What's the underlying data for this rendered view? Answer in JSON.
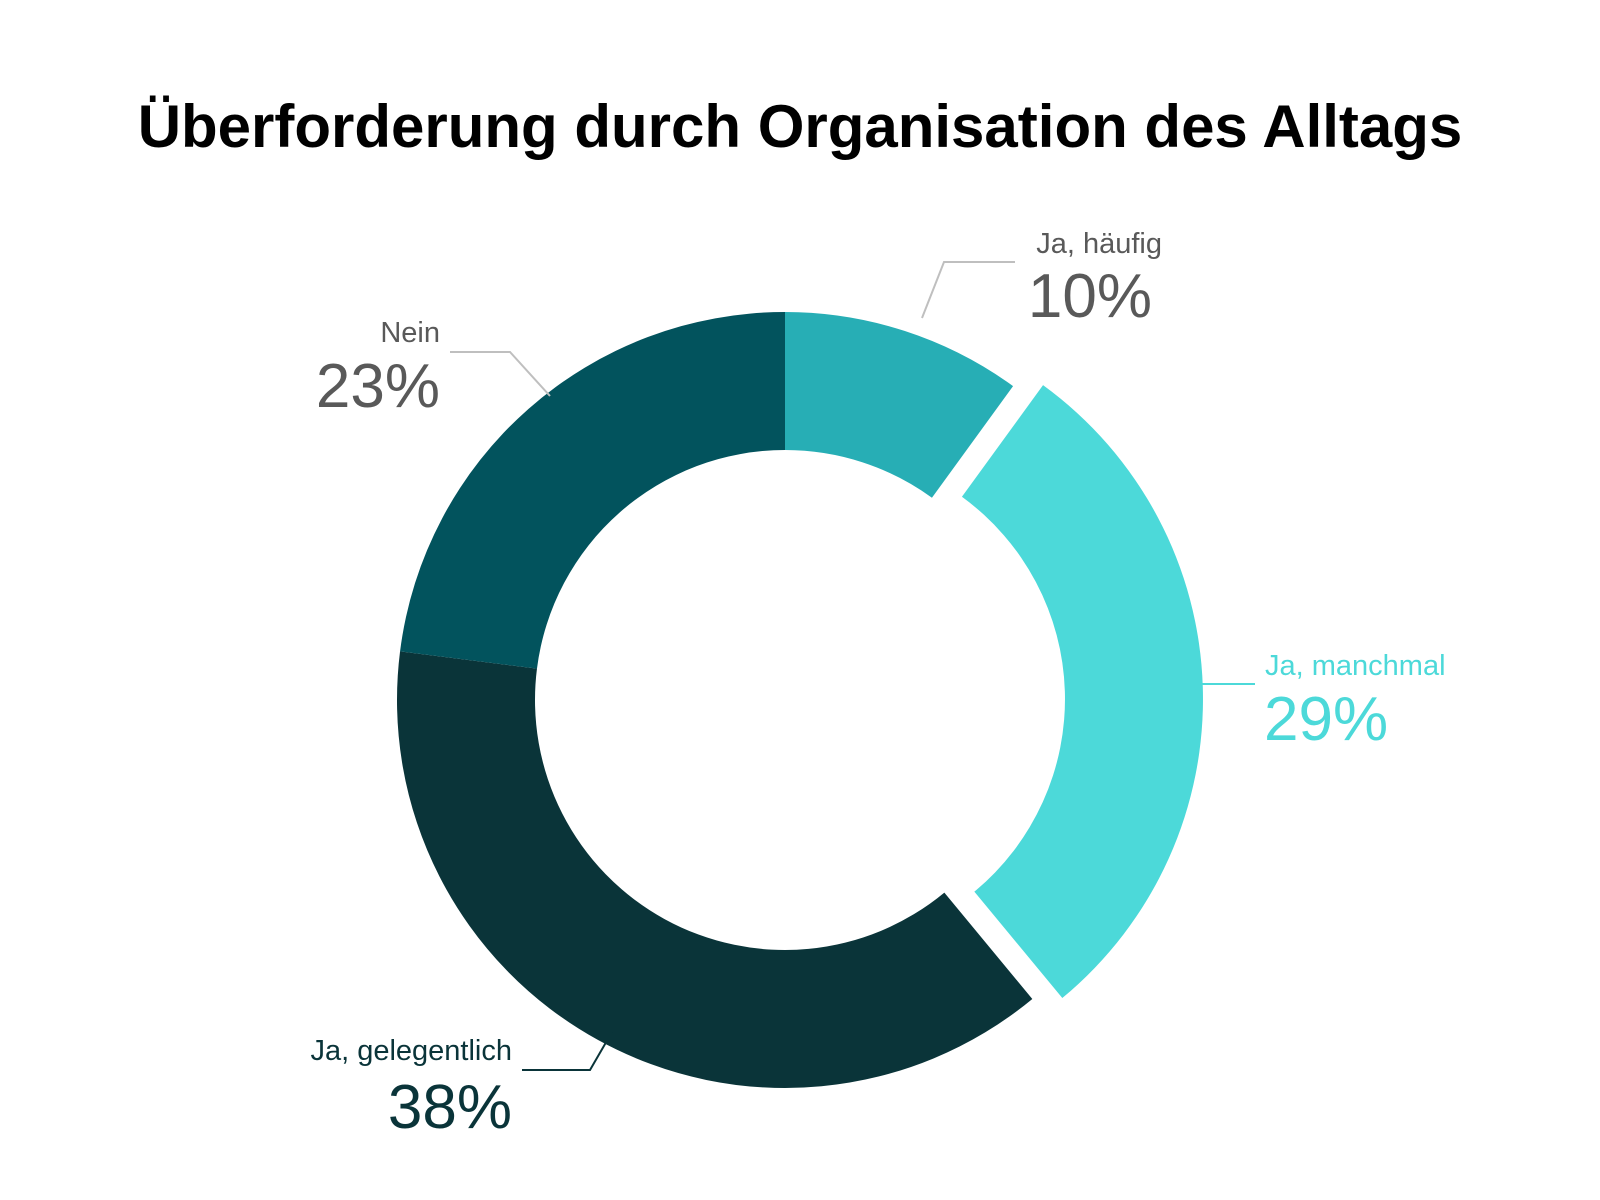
{
  "title": "Überforderung durch Organisation des Alltags",
  "chart_data": {
    "type": "pie",
    "style": "donut",
    "slices": [
      {
        "name": "Ja, häufig",
        "value": 10,
        "label": "10%",
        "color": "#27aeb5",
        "label_color": "#595959",
        "line_color": "#bfbfbf",
        "exploded": false
      },
      {
        "name": "Ja, manchmal",
        "value": 29,
        "label": "29%",
        "color": "#4cd9d9",
        "label_color": "#4cd9d9",
        "line_color": "#4cd9d9",
        "exploded": true
      },
      {
        "name": "Ja, gelegentlich",
        "value": 38,
        "label": "38%",
        "color": "#0a3439",
        "label_color": "#0a3439",
        "line_color": "#0a3439",
        "exploded": false
      },
      {
        "name": "Nein",
        "value": 23,
        "label": "23%",
        "color": "#02535d",
        "label_color": "#595959",
        "line_color": "#bfbfbf",
        "exploded": false
      }
    ],
    "start_angle_deg": 0,
    "direction": "clockwise"
  }
}
